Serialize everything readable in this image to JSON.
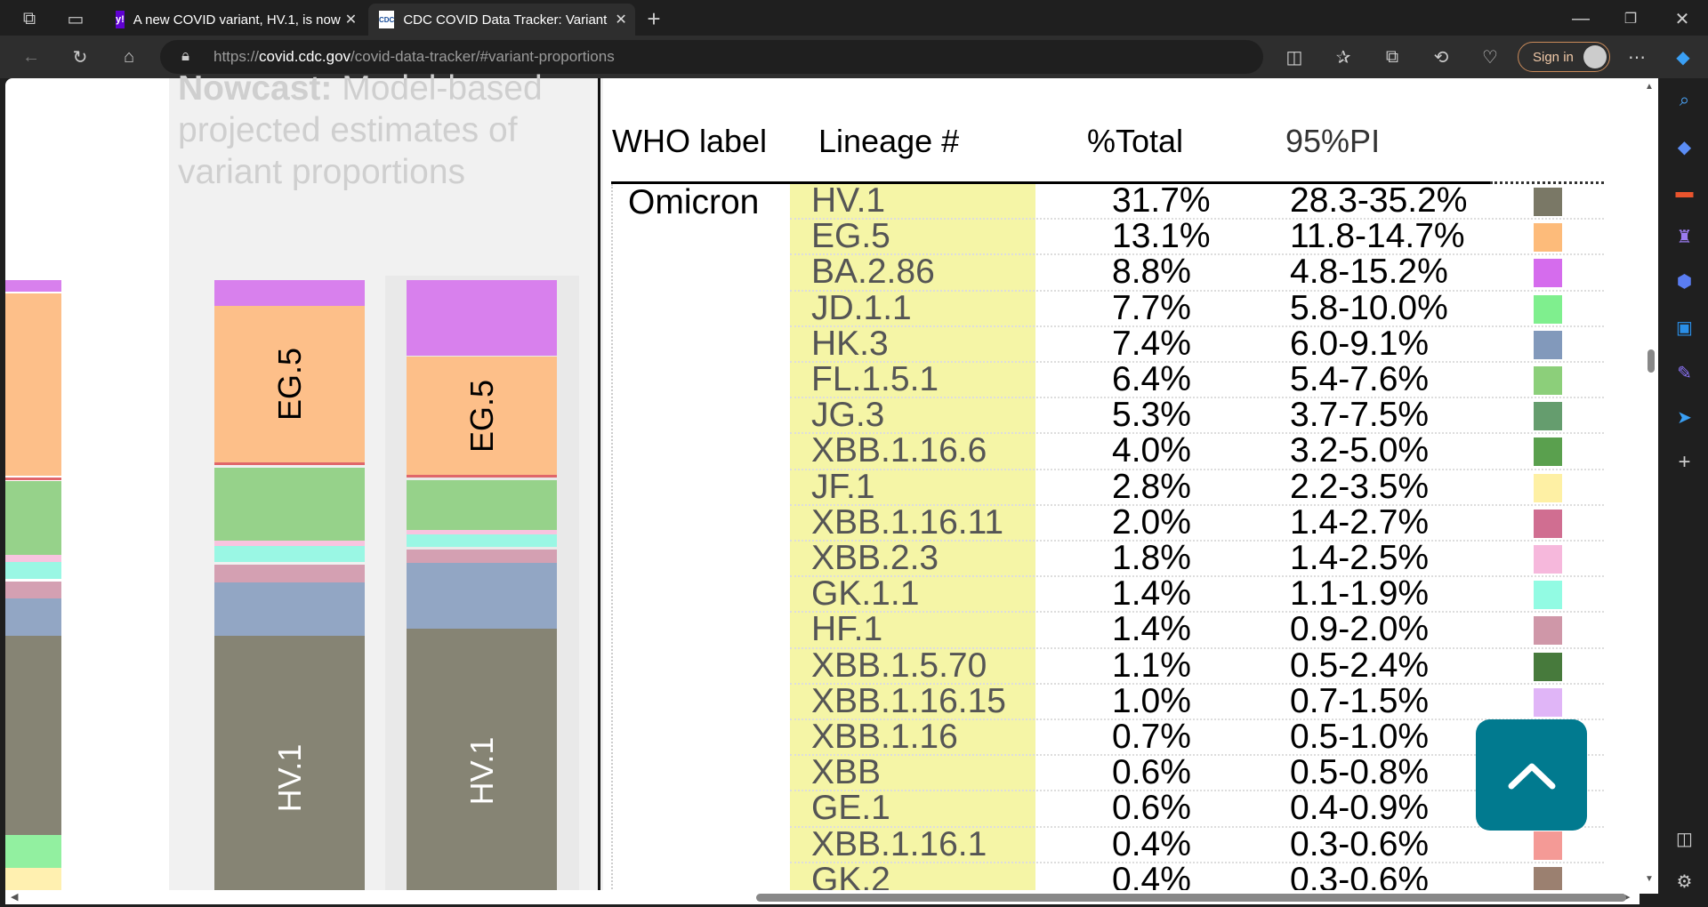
{
  "browser": {
    "tabs": [
      {
        "title": "A new COVID variant, HV.1, is now",
        "favicon": "y!"
      },
      {
        "title": "CDC COVID Data Tracker: Variant",
        "favicon": "CDC"
      }
    ],
    "url_prefix": "https://",
    "url_domain": "covid.cdc.gov",
    "url_path": "/covid-data-tracker/#variant-proportions",
    "sign_in": "Sign in"
  },
  "left": {
    "nowcast_bold": "Nowcast:",
    "nowcast_rest": " Model-based projected estimates of variant proportions",
    "bar_labels": {
      "eg5": "EG.5",
      "hv1": "HV.1"
    }
  },
  "table": {
    "headers": [
      "WHO label",
      "Lineage #",
      "%Total",
      "95%PI"
    ],
    "who_label": "Omicron",
    "rows": [
      {
        "lineage": "HV.1",
        "total": "31.7%",
        "pi": "28.3-35.2%",
        "color": "#7a7866"
      },
      {
        "lineage": "EG.5",
        "total": "13.1%",
        "pi": "11.8-14.7%",
        "color": "#fdbb7a"
      },
      {
        "lineage": "BA.2.86",
        "total": "8.8%",
        "pi": "4.8-15.2%",
        "color": "#d56ced"
      },
      {
        "lineage": "JD.1.1",
        "total": "7.7%",
        "pi": "5.8-10.0%",
        "color": "#7fef8e"
      },
      {
        "lineage": "HK.3",
        "total": "7.4%",
        "pi": "6.0-9.1%",
        "color": "#8299bb"
      },
      {
        "lineage": "FL.1.5.1",
        "total": "6.4%",
        "pi": "5.4-7.6%",
        "color": "#8ccf7a"
      },
      {
        "lineage": "JG.3",
        "total": "5.3%",
        "pi": "3.7-7.5%",
        "color": "#659d6e"
      },
      {
        "lineage": "XBB.1.16.6",
        "total": "4.0%",
        "pi": "3.2-5.0%",
        "color": "#5aa04e"
      },
      {
        "lineage": "JF.1",
        "total": "2.8%",
        "pi": "2.2-3.5%",
        "color": "#fef0a4"
      },
      {
        "lineage": "XBB.1.16.11",
        "total": "2.0%",
        "pi": "1.4-2.7%",
        "color": "#d06e91"
      },
      {
        "lineage": "XBB.2.3",
        "total": "1.8%",
        "pi": "1.4-2.5%",
        "color": "#f6b8dc"
      },
      {
        "lineage": "GK.1.1",
        "total": "1.4%",
        "pi": "1.1-1.9%",
        "color": "#92fbe3"
      },
      {
        "lineage": "HF.1",
        "total": "1.4%",
        "pi": "0.9-2.0%",
        "color": "#cf97a8"
      },
      {
        "lineage": "XBB.1.5.70",
        "total": "1.1%",
        "pi": "0.5-2.4%",
        "color": "#477a3c"
      },
      {
        "lineage": "XBB.1.16.15",
        "total": "1.0%",
        "pi": "0.7-1.5%",
        "color": "#e0b5f7"
      },
      {
        "lineage": "XBB.1.16",
        "total": "0.7%",
        "pi": "0.5-1.0%",
        "color": ""
      },
      {
        "lineage": "XBB",
        "total": "0.6%",
        "pi": "0.5-0.8%",
        "color": ""
      },
      {
        "lineage": "GE.1",
        "total": "0.6%",
        "pi": "0.4-0.9%",
        "color": ""
      },
      {
        "lineage": "XBB.1.16.1",
        "total": "0.4%",
        "pi": "0.3-0.6%",
        "color": "#f49a96"
      },
      {
        "lineage": "GK.2",
        "total": "0.4%",
        "pi": "0.3-0.6%",
        "color": "#9b8070"
      }
    ]
  },
  "colors": {
    "accent": "#017a8f"
  }
}
